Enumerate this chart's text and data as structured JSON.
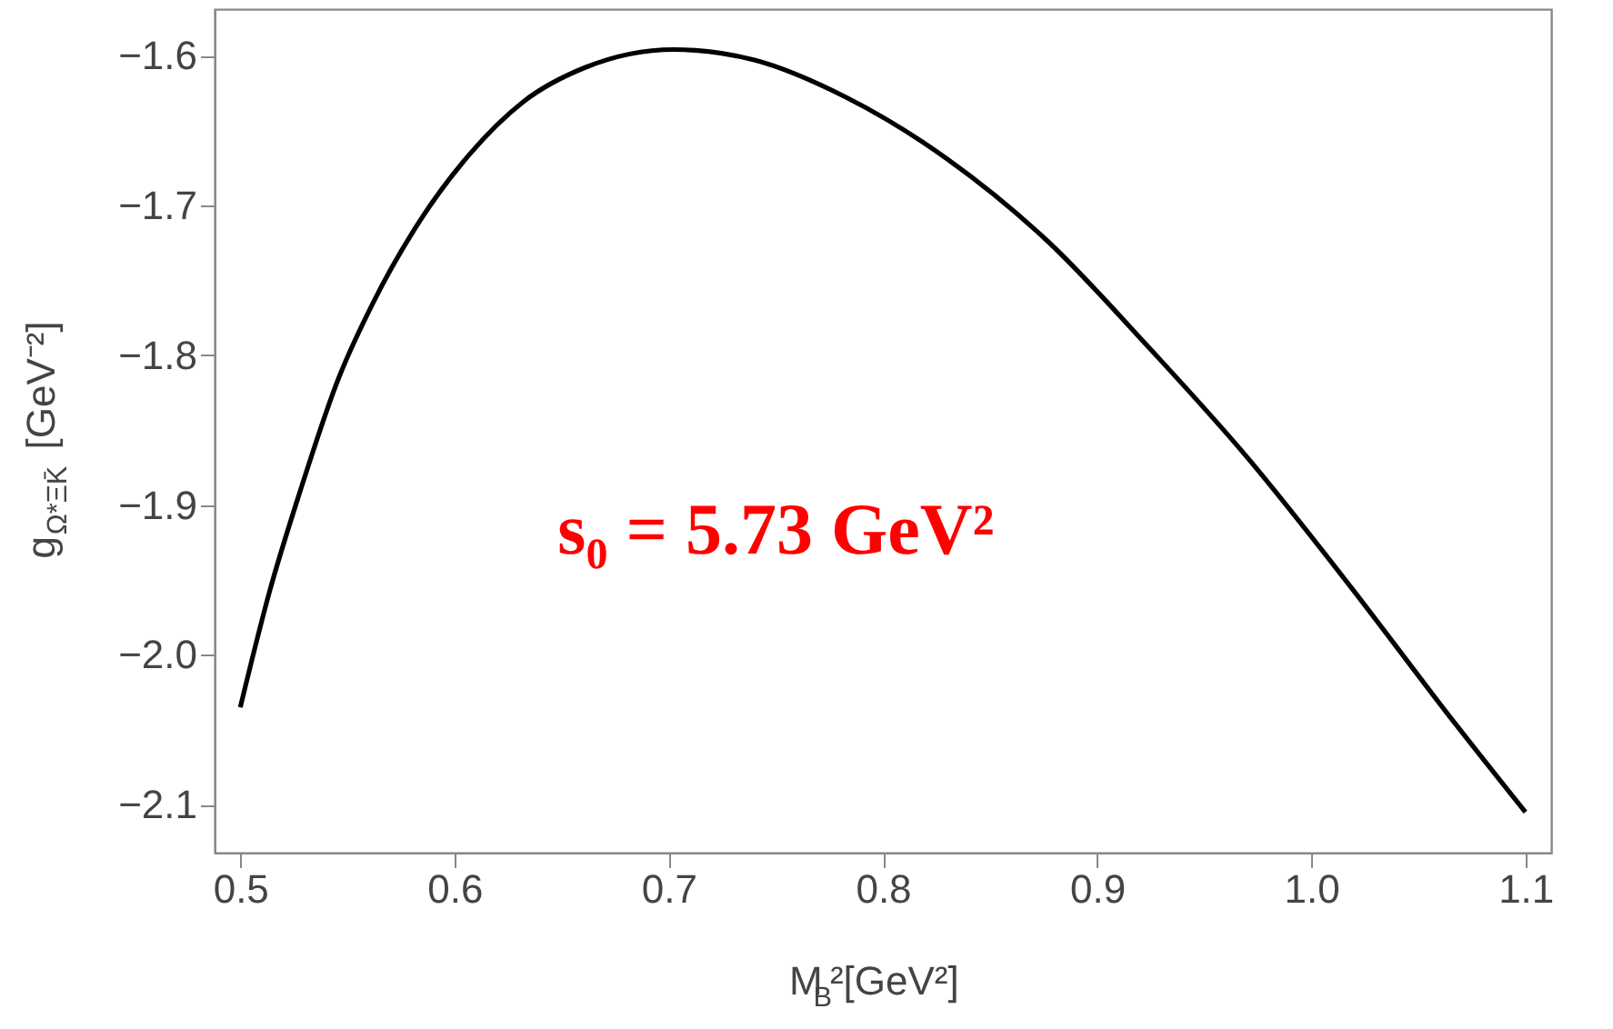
{
  "chart_data": {
    "type": "line",
    "xlabel": "M$_{B}$²[GeV²]",
    "ylabel": "g$_{Ω*ΞK̄}$ [GeV⁻²]",
    "x": [
      0.5,
      0.514,
      0.527,
      0.546,
      0.562,
      0.584,
      0.607,
      0.632,
      0.661,
      0.7025,
      0.74,
      0.783,
      0.83,
      0.877,
      0.923,
      0.97,
      1.017,
      1.064,
      1.1
    ],
    "series": [
      {
        "color": "#000000",
        "values": [
          -2.035,
          -1.956,
          -1.895,
          -1.815,
          -1.765,
          -1.71,
          -1.666,
          -1.631,
          -1.608,
          -1.596,
          -1.603,
          -1.628,
          -1.669,
          -1.724,
          -1.793,
          -1.868,
          -1.952,
          -2.04,
          -2.105
        ]
      }
    ],
    "xlim": [
      0.488,
      1.112
    ],
    "ylim": [
      -2.132,
      -1.569
    ],
    "xticks": [
      {
        "value": 0.5,
        "label": "0.5"
      },
      {
        "value": 0.6,
        "label": "0.6"
      },
      {
        "value": 0.7,
        "label": "0.7"
      },
      {
        "value": 0.8,
        "label": "0.8"
      },
      {
        "value": 0.9,
        "label": "0.9"
      },
      {
        "value": 1.0,
        "label": "1.0"
      },
      {
        "value": 1.1,
        "label": "1.1"
      }
    ],
    "yticks": [
      {
        "value": -2.1,
        "label": "−2.1"
      },
      {
        "value": -2.0,
        "label": "−2.0"
      },
      {
        "value": -1.9,
        "label": "−1.9"
      },
      {
        "value": -1.8,
        "label": "−1.8"
      },
      {
        "value": -1.7,
        "label": "−1.7"
      },
      {
        "value": -1.6,
        "label": "−1.6"
      }
    ],
    "annotations": [
      "s₀ = 5.73 GeV²"
    ],
    "grid": false,
    "marker": "none",
    "line_style": "solid"
  }
}
